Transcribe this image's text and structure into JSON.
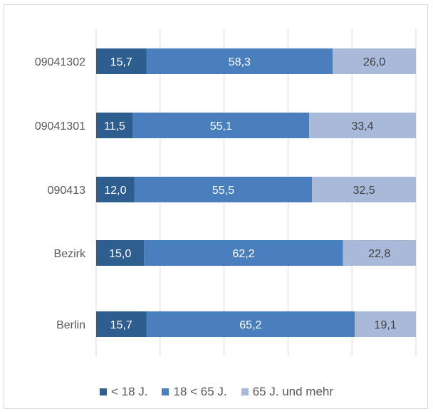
{
  "chart_data": {
    "type": "bar",
    "orientation": "horizontal",
    "stacked": true,
    "categories": [
      "09041302",
      "09041301",
      "090413",
      "Bezirk",
      "Berlin"
    ],
    "series": [
      {
        "name": "< 18 J.",
        "color": "#2e5d8f",
        "values": [
          15.7,
          11.5,
          12.0,
          15.0,
          15.7
        ],
        "labels": [
          "15,7",
          "11,5",
          "12,0",
          "15,0",
          "15,7"
        ],
        "label_color": "#ffffff"
      },
      {
        "name": "18 < 65 J.",
        "color": "#4a7fbd",
        "values": [
          58.3,
          55.1,
          55.5,
          62.2,
          65.2
        ],
        "labels": [
          "58,3",
          "55,1",
          "55,5",
          "62,2",
          "65,2"
        ],
        "label_color": "#ffffff"
      },
      {
        "name": "65 J. und mehr",
        "color": "#a8b9da",
        "values": [
          26.0,
          33.4,
          32.5,
          22.8,
          19.1
        ],
        "labels": [
          "26,0",
          "33,4",
          "32,5",
          "22,8",
          "19,1"
        ],
        "label_color": "#404040"
      }
    ],
    "xlim": [
      0,
      100
    ],
    "grid": true,
    "legend_position": "bottom"
  }
}
